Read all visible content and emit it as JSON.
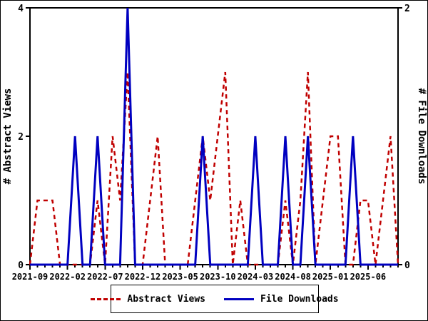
{
  "chart_data": {
    "type": "line",
    "title": "",
    "x": {
      "months": [
        "2021-09",
        "2021-10",
        "2021-11",
        "2021-12",
        "2022-01",
        "2022-02",
        "2022-03",
        "2022-04",
        "2022-05",
        "2022-06",
        "2022-07",
        "2022-08",
        "2022-09",
        "2022-10",
        "2022-11",
        "2022-12",
        "2023-01",
        "2023-02",
        "2023-03",
        "2023-04",
        "2023-05",
        "2023-06",
        "2023-07",
        "2023-08",
        "2023-09",
        "2023-10",
        "2023-11",
        "2023-12",
        "2024-01",
        "2024-02",
        "2024-03",
        "2024-04",
        "2024-05",
        "2024-06",
        "2024-07",
        "2024-08",
        "2024-09",
        "2024-10",
        "2024-11",
        "2024-12",
        "2025-01",
        "2025-02",
        "2025-03",
        "2025-04",
        "2025-05",
        "2025-06",
        "2025-07",
        "2025-08",
        "2025-09",
        "2025-10"
      ],
      "tick_label_every": 5,
      "tick_labels": [
        "2021-09",
        "2022-02",
        "2022-07",
        "2022-12",
        "2023-05",
        "2023-10",
        "2024-03",
        "2024-08",
        "2025-01",
        "2025-06"
      ]
    },
    "left_axis": {
      "label": "# Abstract Views",
      "min": 0,
      "max": 4,
      "ticks": [
        0,
        2,
        4
      ]
    },
    "right_axis": {
      "label": "# File Downloads",
      "min": 0,
      "max": 2,
      "ticks": [
        0,
        2
      ]
    },
    "grid": false,
    "legend_position": "bottom-center",
    "series": [
      {
        "name": "Abstract Views",
        "axis": "left",
        "color": "#c00000",
        "style": "dashed",
        "values": [
          0,
          1,
          1,
          1,
          0,
          0,
          0,
          0,
          0,
          1,
          0,
          2,
          1,
          3,
          0,
          0,
          1,
          2,
          0,
          0,
          0,
          0,
          1,
          2,
          1,
          2,
          3,
          0,
          1,
          0,
          0,
          0,
          0,
          0,
          1,
          0,
          1,
          3,
          0,
          1,
          2,
          2,
          0,
          0,
          1,
          1,
          0,
          1,
          2,
          0
        ]
      },
      {
        "name": "File Downloads",
        "axis": "right",
        "color": "#0000c0",
        "style": "solid",
        "values": [
          0,
          0,
          0,
          0,
          0,
          0,
          1,
          0,
          0,
          1,
          0,
          0,
          0,
          2,
          0,
          0,
          0,
          0,
          0,
          0,
          0,
          0,
          0,
          1,
          0,
          0,
          0,
          0,
          0,
          0,
          1,
          0,
          0,
          0,
          1,
          0,
          0,
          1,
          0,
          0,
          0,
          0,
          0,
          1,
          0,
          0,
          0,
          0,
          0,
          0
        ]
      }
    ]
  }
}
